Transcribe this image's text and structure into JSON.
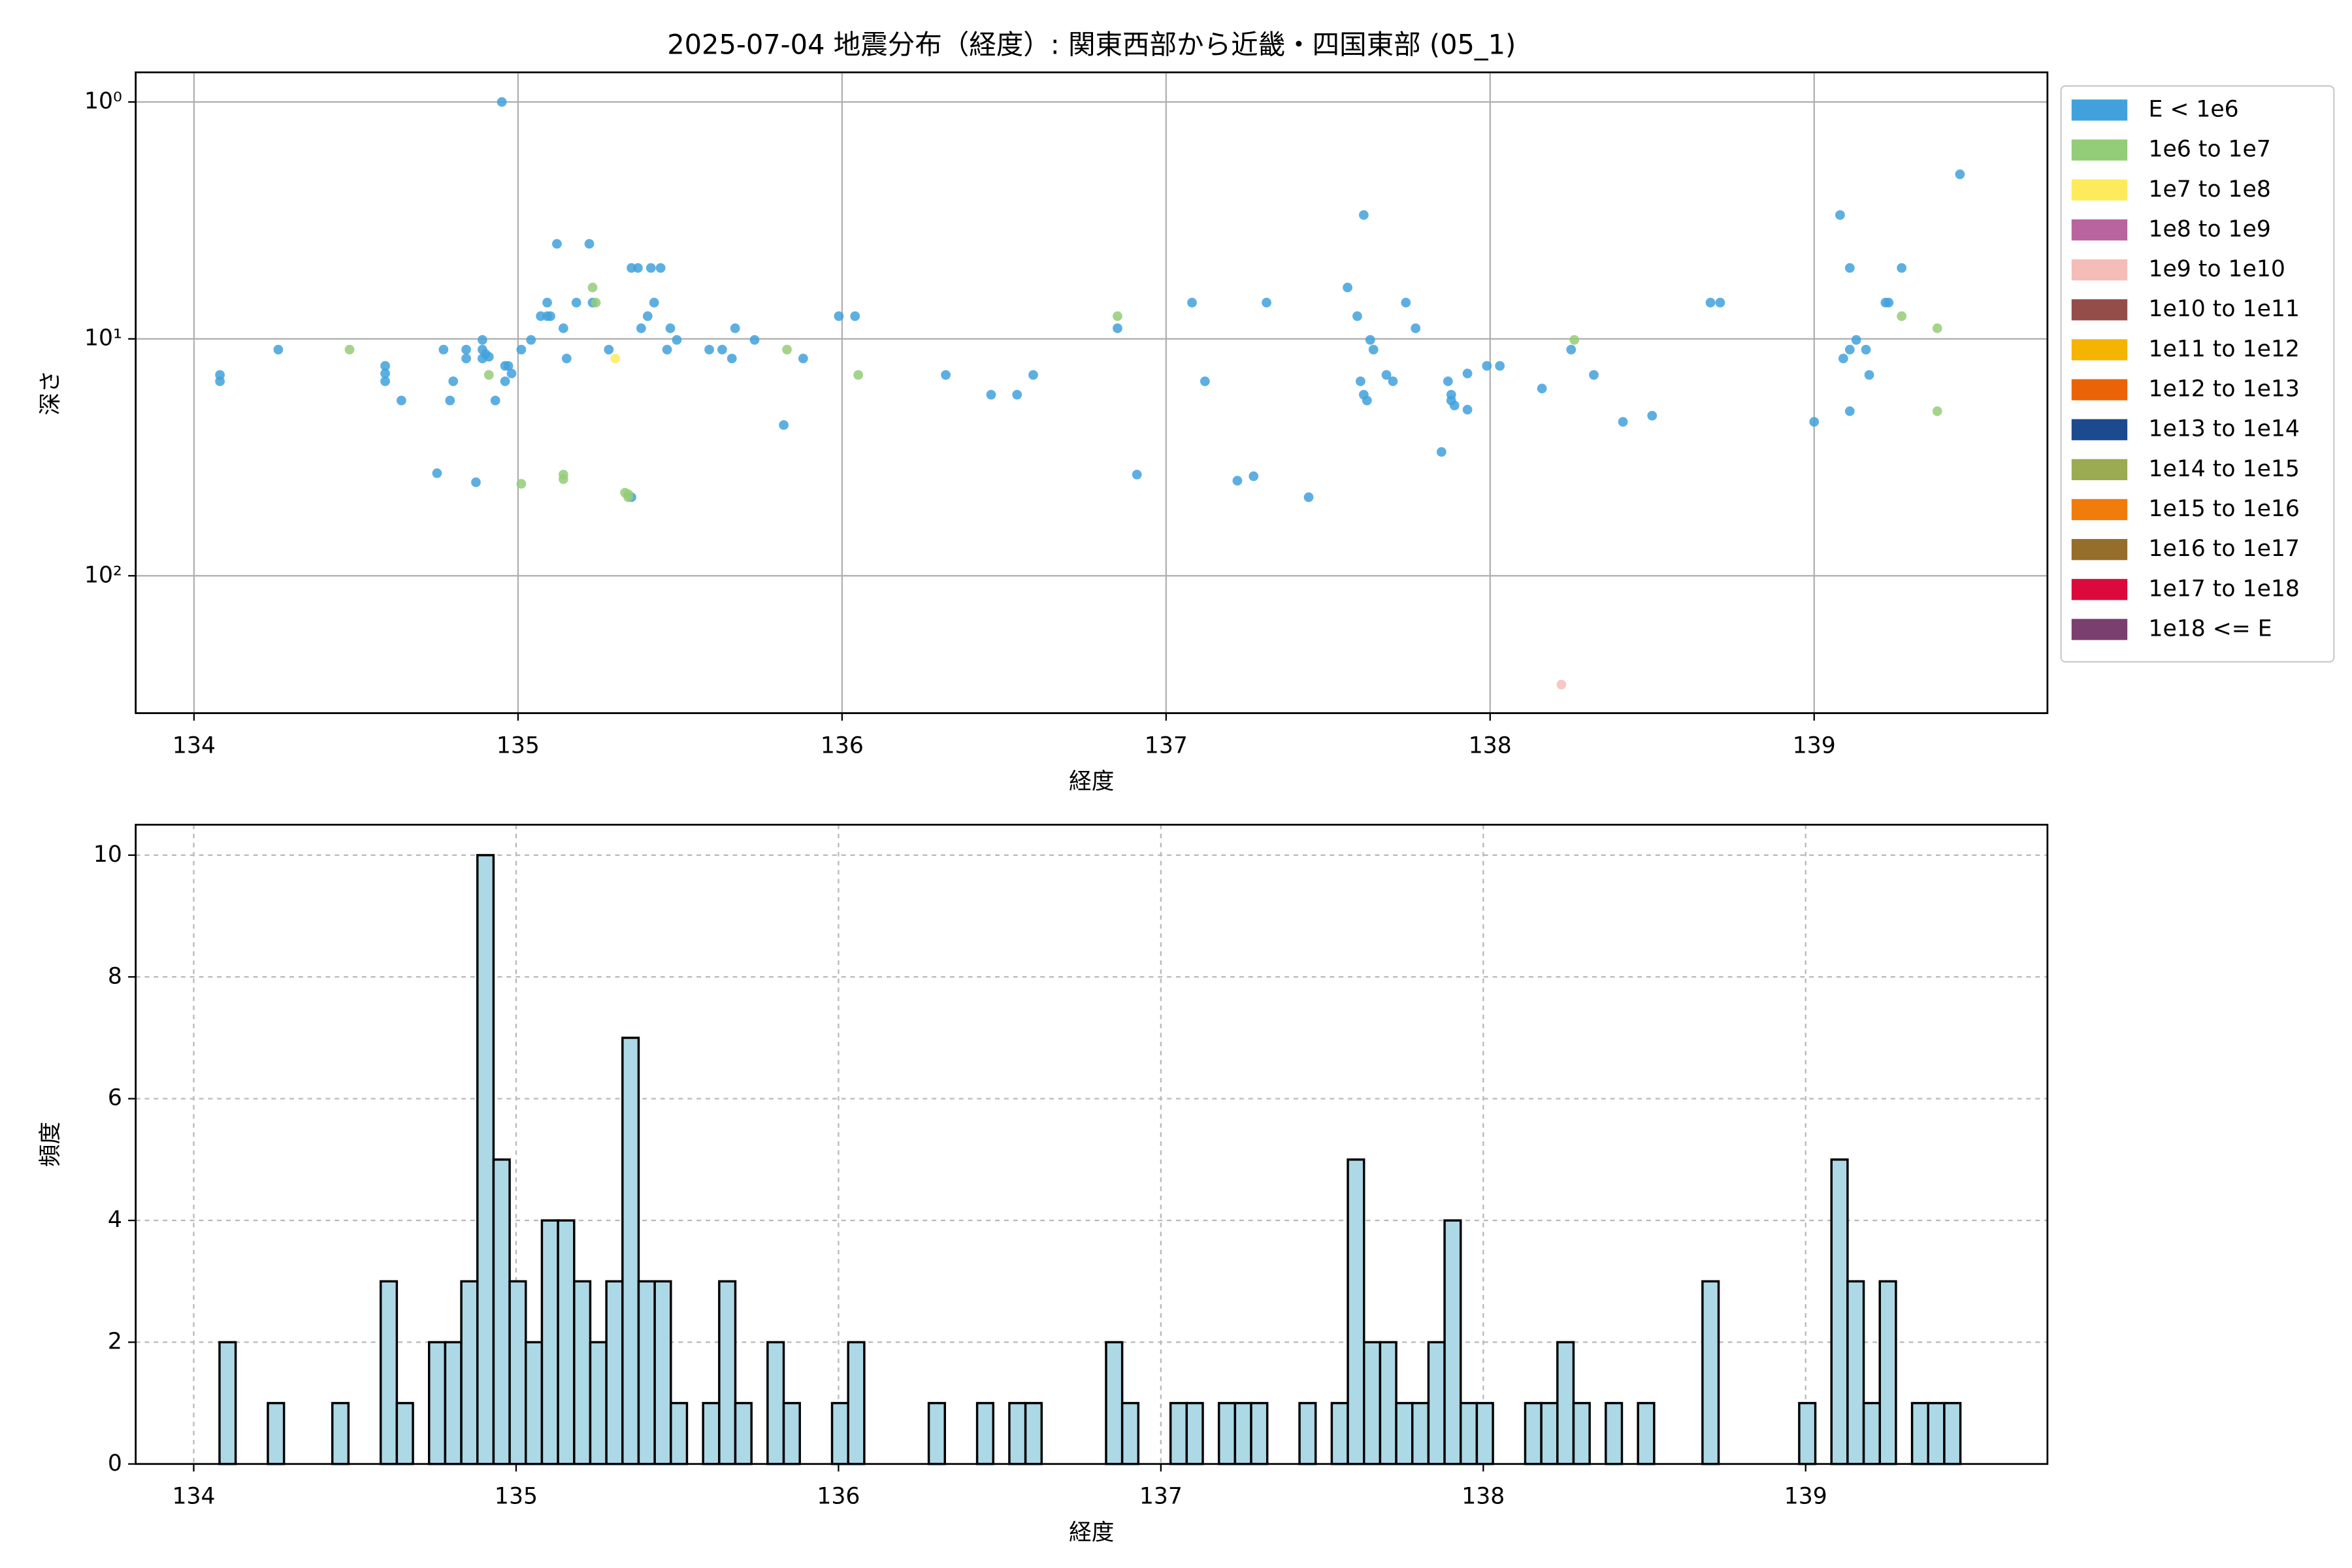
{
  "chart_data": [
    {
      "type": "scatter",
      "title": "2025-07-04 地震分布（経度）: 関東西部から近畿・四国東部 (05_1)",
      "xlabel": "経度",
      "ylabel": "深さ",
      "xlim": [
        133.82,
        139.72
      ],
      "xticks": [
        134,
        135,
        136,
        137,
        138,
        139
      ],
      "ylim": [
        0.75,
        380
      ],
      "yscale": "log",
      "yinverted": true,
      "yticks": [
        {
          "value": 1,
          "label": "10⁰"
        },
        {
          "value": 10,
          "label": "10¹"
        },
        {
          "value": 100,
          "label": "10²"
        }
      ],
      "grid": true,
      "legend": "outside upper right",
      "series": [
        {
          "name": "E < 1e6",
          "color": "#41a1dc",
          "x": [
            134.08,
            134.08,
            134.26,
            134.59,
            134.59,
            134.59,
            134.64,
            134.75,
            134.77,
            134.79,
            134.8,
            134.84,
            134.84,
            134.87,
            134.89,
            134.89,
            134.89,
            134.9,
            134.91,
            134.93,
            134.95,
            134.96,
            134.96,
            134.97,
            134.98,
            135.01,
            135.04,
            135.07,
            135.09,
            135.09,
            135.1,
            135.12,
            135.14,
            135.15,
            135.18,
            135.22,
            135.23,
            135.28,
            135.35,
            135.35,
            135.37,
            135.38,
            135.4,
            135.41,
            135.42,
            135.44,
            135.46,
            135.47,
            135.49,
            135.59,
            135.63,
            135.66,
            135.67,
            135.73,
            135.82,
            135.88,
            135.99,
            136.04,
            136.32,
            136.46,
            136.54,
            136.59,
            136.85,
            136.91,
            137.08,
            137.12,
            137.22,
            137.27,
            137.31,
            137.44,
            137.56,
            137.59,
            137.61,
            137.6,
            137.61,
            137.62,
            137.63,
            137.64,
            137.68,
            137.7,
            137.74,
            137.77,
            137.85,
            137.87,
            137.88,
            137.88,
            137.89,
            137.93,
            137.93,
            137.99,
            138.03,
            138.16,
            138.25,
            138.32,
            138.41,
            138.5,
            138.68,
            138.71,
            139.0,
            139.08,
            139.09,
            139.11,
            139.11,
            139.11,
            139.13,
            139.16,
            139.17,
            139.22,
            139.23,
            139.27,
            139.45
          ],
          "values": [
            14.2,
            15.1,
            11.1,
            13.0,
            14.0,
            15.1,
            18.2,
            36.9,
            11.1,
            18.2,
            15.1,
            11.1,
            12.1,
            40.3,
            11.1,
            12.1,
            10.1,
            11.6,
            11.9,
            18.2,
            1.0,
            13.0,
            15.1,
            13.0,
            14.0,
            11.1,
            10.1,
            8.02,
            8.02,
            7.03,
            8.02,
            3.97,
            9.02,
            12.1,
            7.03,
            3.97,
            7.03,
            11.1,
            5.02,
            46.6,
            5.02,
            9.02,
            8.02,
            5.02,
            7.03,
            5.02,
            11.1,
            9.02,
            10.1,
            11.1,
            11.1,
            12.1,
            9.02,
            10.1,
            23.1,
            12.1,
            8.02,
            8.02,
            14.2,
            17.2,
            17.2,
            14.2,
            9.02,
            37.4,
            7.03,
            15.1,
            39.7,
            38.0,
            7.03,
            46.6,
            6.07,
            8.02,
            3.0,
            15.1,
            17.2,
            18.2,
            10.1,
            11.1,
            14.2,
            15.1,
            7.03,
            9.02,
            30.0,
            15.1,
            17.2,
            18.2,
            19.1,
            19.9,
            14.0,
            13.0,
            13.0,
            16.2,
            11.1,
            14.2,
            22.4,
            21.1,
            7.03,
            7.03,
            22.4,
            3.0,
            12.1,
            20.2,
            5.02,
            11.1,
            10.1,
            11.1,
            14.2,
            7.03,
            7.03,
            5.02,
            2.02
          ]
        },
        {
          "name": "1e6 to 1e7",
          "color": "#94cd78",
          "x": [
            134.48,
            134.91,
            135.01,
            135.14,
            135.14,
            135.23,
            135.24,
            135.33,
            135.34,
            135.83,
            136.05,
            136.85,
            138.26,
            139.27,
            139.38,
            139.38,
            135.34
          ],
          "values": [
            11.1,
            14.2,
            40.9,
            37.4,
            39.1,
            6.07,
            7.03,
            44.6,
            46.6,
            11.1,
            14.2,
            8.02,
            10.1,
            8.02,
            9.02,
            20.2,
            45.3
          ]
        },
        {
          "name": "1e7 to 1e8",
          "color": "#fdeb5c",
          "x": [
            135.3
          ],
          "values": [
            12.1
          ]
        },
        {
          "name": "1e8 to 1e9",
          "color": "#b9649f",
          "x": [],
          "values": []
        },
        {
          "name": "1e9 to 1e10",
          "color": "#f4bdb8",
          "x": [
            138.22
          ],
          "values": [
            288
          ]
        },
        {
          "name": "1e10 to 1e11",
          "color": "#954d4a",
          "x": [],
          "values": []
        },
        {
          "name": "1e11 to 1e12",
          "color": "#f5b400",
          "x": [],
          "values": []
        },
        {
          "name": "1e12 to 1e13",
          "color": "#eb6307",
          "x": [],
          "values": []
        },
        {
          "name": "1e13 to 1e14",
          "color": "#1c4a8e",
          "x": [],
          "values": []
        },
        {
          "name": "1e14 to 1e15",
          "color": "#9bab52",
          "x": [],
          "values": []
        },
        {
          "name": "1e15 to 1e16",
          "color": "#f07c0b",
          "x": [],
          "values": []
        },
        {
          "name": "1e16 to 1e17",
          "color": "#956e2c",
          "x": [],
          "values": []
        },
        {
          "name": "1e17 to 1e18",
          "color": "#dc0a3c",
          "x": [],
          "values": []
        },
        {
          "name": "1e18 <= E",
          "color": "#7a3f6f",
          "x": [],
          "values": []
        }
      ]
    },
    {
      "type": "histogram",
      "xlabel": "経度",
      "ylabel": "頻度",
      "xlim": [
        133.82,
        139.75
      ],
      "xticks": [
        134,
        135,
        136,
        137,
        138,
        139
      ],
      "ylim": [
        0,
        10.5
      ],
      "yticks": [
        0,
        2,
        4,
        6,
        8,
        10
      ],
      "grid": true,
      "grid_style": "dashed",
      "color": "#add8e6",
      "edgecolor": "#000000",
      "bins": [
        134.08,
        134.13,
        134.18,
        134.23,
        134.28,
        134.33,
        134.38,
        134.43,
        134.48,
        134.53,
        134.58,
        134.63,
        134.68,
        134.73,
        134.78,
        134.83,
        134.88,
        134.93,
        134.98,
        135.03,
        135.08,
        135.13,
        135.18,
        135.23,
        135.28,
        135.33,
        135.38,
        135.43,
        135.48,
        135.53,
        135.58,
        135.63,
        135.68,
        135.73,
        135.78,
        135.83,
        135.88,
        135.93,
        135.98,
        136.03,
        136.08,
        136.13,
        136.18,
        136.23,
        136.28,
        136.33,
        136.38,
        136.43,
        136.48,
        136.53,
        136.58,
        136.63,
        136.68,
        136.73,
        136.78,
        136.83,
        136.88,
        136.93,
        136.98,
        137.03,
        137.08,
        137.13,
        137.18,
        137.23,
        137.28,
        137.33,
        137.38,
        137.43,
        137.48,
        137.53,
        137.58,
        137.63,
        137.68,
        137.73,
        137.78,
        137.83,
        137.88,
        137.93,
        137.98,
        138.03,
        138.08,
        138.13,
        138.18,
        138.23,
        138.28,
        138.33,
        138.38,
        138.43,
        138.48,
        138.53,
        138.58,
        138.63,
        138.68,
        138.73,
        138.78,
        138.83,
        138.88,
        138.93,
        138.98,
        139.03,
        139.08,
        139.13,
        139.18,
        139.23,
        139.28,
        139.33,
        139.38,
        139.43,
        139.48
      ],
      "values": [
        2,
        0,
        0,
        1,
        0,
        0,
        0,
        1,
        0,
        0,
        3,
        1,
        0,
        2,
        2,
        3,
        10,
        5,
        3,
        2,
        4,
        4,
        3,
        2,
        3,
        7,
        3,
        3,
        1,
        0,
        1,
        3,
        1,
        0,
        2,
        1,
        0,
        0,
        1,
        2,
        0,
        0,
        0,
        0,
        1,
        0,
        0,
        1,
        0,
        1,
        1,
        0,
        0,
        0,
        0,
        2,
        1,
        0,
        0,
        1,
        1,
        0,
        1,
        1,
        1,
        0,
        0,
        1,
        0,
        1,
        5,
        2,
        2,
        1,
        1,
        2,
        4,
        1,
        1,
        0,
        0,
        1,
        1,
        2,
        1,
        0,
        1,
        0,
        1,
        0,
        0,
        0,
        3,
        0,
        0,
        0,
        0,
        0,
        1,
        0,
        5,
        3,
        1,
        3,
        0,
        1,
        1,
        1
      ]
    }
  ]
}
